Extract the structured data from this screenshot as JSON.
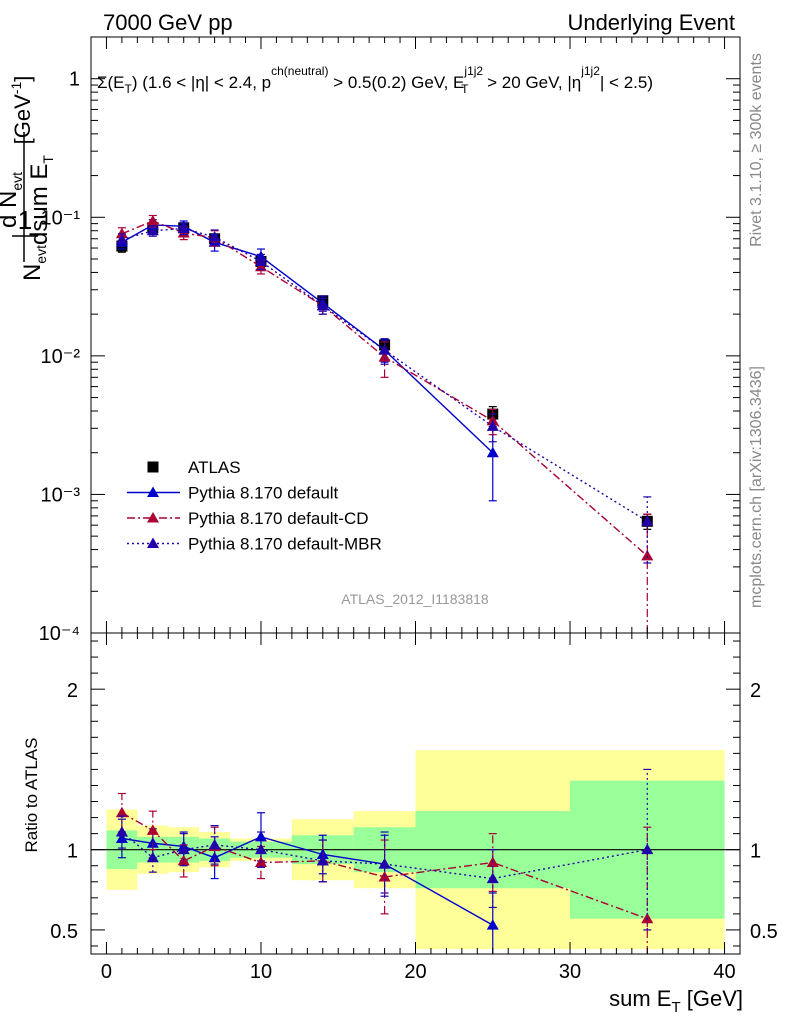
{
  "header": {
    "left": "7000 GeV pp",
    "right": "Underlying Event"
  },
  "plot_title": {
    "main": "Σ(E",
    "sub_T": "T",
    "rest1": ") (1.6 < |η| < 2.4, p",
    "sup_ch": "ch(neutral)",
    "rest2": " > 0.5(0.2) GeV, E",
    "sup_j": "j1j2",
    "sub_T2": "T",
    "rest3": " > 20 GeV, |η",
    "sup_j2": "j1j2",
    "rest4": "| < 2.5)"
  },
  "side_labels": {
    "rivet": "Rivet 3.1.10, ≥ 300k events",
    "mcplots": "mcplots.cern.ch [arXiv:1306.3436]"
  },
  "watermark": "ATLAS_2012_I1183818",
  "ylabel_main": {
    "one": "1",
    "N": "N",
    "evt_sub": "evt",
    "dN": "d N",
    "dsum": "dsum E",
    "T_sub": "T",
    "unit": "[GeV",
    "unit_sup": "-1",
    "unit_close": "]"
  },
  "ylabel_ratio": "Ratio to ATLAS",
  "xlabel": {
    "main": "sum E",
    "sub": "T",
    "unit": " [GeV]"
  },
  "legend": [
    {
      "label": "ATLAS",
      "color": "#000000",
      "marker": "square",
      "dash": ""
    },
    {
      "label": "Pythia 8.170 default",
      "color": "#0000cc",
      "marker": "triangle",
      "dash": ""
    },
    {
      "label": "Pythia 8.170 default-CD",
      "color": "#aa0033",
      "marker": "triangle",
      "dash": "8,3,2,3"
    },
    {
      "label": "Pythia 8.170 default-MBR",
      "color": "#2200aa",
      "marker": "triangle",
      "dash": "2,3"
    }
  ],
  "chart_data": [
    {
      "type": "scatter",
      "scale": "log",
      "ylim": [
        0.0001,
        2
      ],
      "xlim": [
        -1,
        41
      ],
      "ytick_labels": [
        "10⁻⁴",
        "10⁻³",
        "10⁻²",
        "10⁻¹",
        "1"
      ],
      "xtick_labels": [
        "0",
        "10",
        "20",
        "30",
        "40"
      ],
      "bins": [
        [
          0,
          2
        ],
        [
          2,
          4
        ],
        [
          4,
          6
        ],
        [
          6,
          8
        ],
        [
          8,
          12
        ],
        [
          12,
          16
        ],
        [
          16,
          20
        ],
        [
          20,
          30
        ],
        [
          30,
          40
        ]
      ],
      "x": [
        1,
        3,
        5,
        7,
        10,
        14,
        18,
        25,
        35
      ],
      "series": [
        {
          "name": "ATLAS",
          "values": [
            0.062,
            0.084,
            0.084,
            0.07,
            0.048,
            0.025,
            0.012,
            0.0038,
            0.00064
          ],
          "err_lo": [
            0.006,
            0.006,
            0.006,
            0.005,
            0.004,
            0.002,
            0.0012,
            0.0005,
            8e-05
          ],
          "err_hi": [
            0.006,
            0.006,
            0.006,
            0.005,
            0.004,
            0.002,
            0.0012,
            0.0005,
            8e-05
          ]
        },
        {
          "name": "Pythia 8.170 default",
          "values": [
            0.066,
            0.088,
            0.086,
            0.066,
            0.052,
            0.024,
            0.011,
            0.002,
            null
          ],
          "err_lo": [
            0.007,
            0.008,
            0.008,
            0.009,
            0.007,
            0.003,
            0.002,
            0.0011,
            null
          ],
          "err_hi": [
            0.007,
            0.008,
            0.008,
            0.009,
            0.007,
            0.003,
            0.002,
            0.0011,
            null
          ]
        },
        {
          "name": "Pythia 8.170 default-CD",
          "values": [
            0.076,
            0.094,
            0.077,
            0.071,
            0.044,
            0.023,
            0.0098,
            0.0034,
            0.00036
          ],
          "err_lo": [
            0.008,
            0.009,
            0.008,
            0.009,
            0.005,
            0.003,
            0.0028,
            0.0007,
            0.00036
          ],
          "err_hi": [
            0.008,
            0.009,
            0.008,
            0.009,
            0.005,
            0.003,
            0.0028,
            0.0007,
            0.00036
          ]
        },
        {
          "name": "Pythia 8.170 default-MBR",
          "values": [
            0.069,
            0.08,
            0.083,
            0.072,
            0.048,
            0.023,
            0.011,
            0.0031,
            0.00064
          ],
          "err_lo": [
            0.007,
            0.007,
            0.008,
            0.009,
            0.006,
            0.003,
            0.0023,
            0.0007,
            0.00032
          ],
          "err_hi": [
            0.007,
            0.007,
            0.008,
            0.009,
            0.006,
            0.003,
            0.0023,
            0.0007,
            0.00032
          ]
        }
      ]
    },
    {
      "type": "scatter",
      "title": "Ratio to ATLAS",
      "ylim": [
        0.35,
        2.35
      ],
      "xlim": [
        -1,
        41
      ],
      "ytick_labels": [
        "0.5",
        "1",
        "2"
      ],
      "xtick_labels": [
        "0",
        "10",
        "20",
        "30",
        "40"
      ],
      "bins": [
        [
          0,
          2
        ],
        [
          2,
          4
        ],
        [
          4,
          6
        ],
        [
          6,
          8
        ],
        [
          8,
          12
        ],
        [
          12,
          16
        ],
        [
          16,
          20
        ],
        [
          20,
          30
        ],
        [
          30,
          40
        ]
      ],
      "band_green": [
        [
          0.88,
          1.12
        ],
        [
          0.92,
          1.08
        ],
        [
          0.92,
          1.08
        ],
        [
          0.93,
          1.07
        ],
        [
          0.95,
          1.05
        ],
        [
          0.91,
          1.09
        ],
        [
          0.86,
          1.14
        ],
        [
          0.76,
          1.24
        ],
        [
          0.57,
          1.43
        ]
      ],
      "band_yellow": [
        [
          0.75,
          1.25
        ],
        [
          0.85,
          1.15
        ],
        [
          0.86,
          1.14
        ],
        [
          0.89,
          1.11
        ],
        [
          0.93,
          1.07
        ],
        [
          0.81,
          1.19
        ],
        [
          0.76,
          1.24
        ],
        [
          0.38,
          1.62
        ],
        [
          0.38,
          1.62
        ]
      ],
      "x": [
        1,
        3,
        5,
        7,
        10,
        14,
        18,
        25,
        35
      ],
      "series": [
        {
          "name": "Pythia 8.170 default",
          "values": [
            1.07,
            1.04,
            1.02,
            0.95,
            1.08,
            0.97,
            0.91,
            0.53,
            null
          ],
          "err_lo": [
            0.12,
            0.09,
            0.09,
            0.13,
            0.15,
            0.12,
            0.18,
            0.2,
            null
          ],
          "err_hi": [
            0.12,
            0.09,
            0.09,
            0.13,
            0.15,
            0.12,
            0.18,
            0.2,
            null
          ]
        },
        {
          "name": "Pythia 8.170 default-CD",
          "values": [
            1.23,
            1.12,
            0.93,
            1.02,
            0.92,
            0.93,
            0.83,
            0.92,
            0.57
          ],
          "err_lo": [
            0.12,
            0.12,
            0.1,
            0.12,
            0.1,
            0.13,
            0.23,
            0.18,
            0.57
          ],
          "err_hi": [
            0.12,
            0.12,
            0.1,
            0.12,
            0.1,
            0.13,
            0.23,
            0.18,
            0.57
          ]
        },
        {
          "name": "Pythia 8.170 default-MBR",
          "values": [
            1.11,
            0.95,
            1.0,
            1.03,
            1.0,
            0.93,
            0.91,
            0.82,
            1.0
          ],
          "err_lo": [
            0.1,
            0.09,
            0.1,
            0.12,
            0.11,
            0.13,
            0.2,
            0.18,
            0.5
          ],
          "err_hi": [
            0.1,
            0.09,
            0.1,
            0.12,
            0.11,
            0.13,
            0.2,
            0.18,
            0.5
          ]
        }
      ]
    }
  ]
}
